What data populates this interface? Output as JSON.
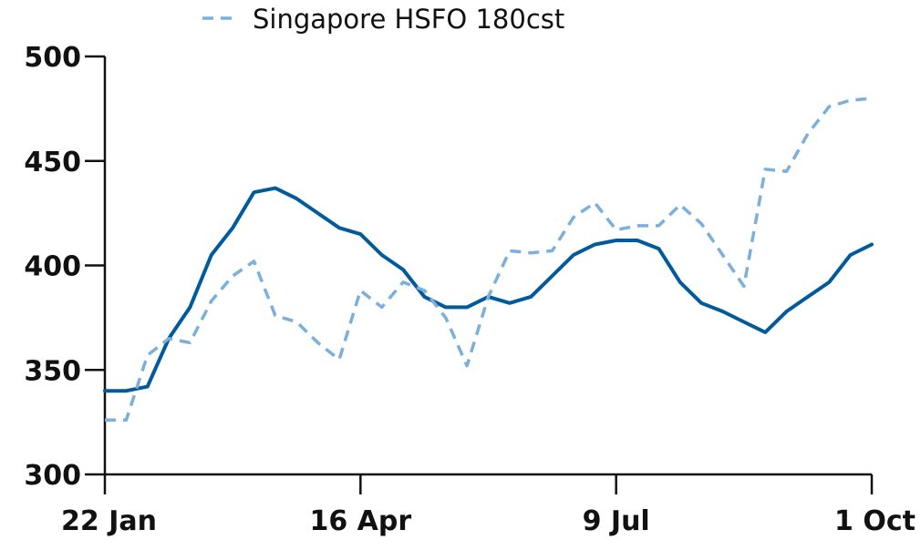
{
  "chart_data": {
    "type": "line",
    "title": "",
    "xlabel": "",
    "ylabel": "",
    "ylim": [
      300,
      500
    ],
    "yticks": [
      300,
      350,
      400,
      450,
      500
    ],
    "xticks": [
      "22 Jan",
      "16 Apr",
      "9 Jul",
      "1 Oct"
    ],
    "x": [
      "22 Jan",
      "29 Jan",
      "5 Feb",
      "12 Feb",
      "19 Feb",
      "26 Feb",
      "5 Mar",
      "12 Mar",
      "19 Mar",
      "26 Mar",
      "2 Apr",
      "9 Apr",
      "16 Apr",
      "23 Apr",
      "30 Apr",
      "7 May",
      "14 May",
      "21 May",
      "28 May",
      "4 Jun",
      "11 Jun",
      "18 Jun",
      "25 Jun",
      "2 Jul",
      "9 Jul",
      "16 Jul",
      "23 Jul",
      "30 Jul",
      "6 Aug",
      "13 Aug",
      "20 Aug",
      "27 Aug",
      "3 Sep",
      "10 Sep",
      "17 Sep",
      "24 Sep",
      "1 Oct"
    ],
    "grid": false,
    "legend_position": "top",
    "series": [
      {
        "name": "",
        "color": "#005a9c",
        "style": "solid",
        "values": [
          340,
          340,
          342,
          365,
          380,
          405,
          418,
          435,
          437,
          432,
          425,
          418,
          415,
          405,
          398,
          385,
          380,
          380,
          385,
          382,
          385,
          395,
          405,
          410,
          412,
          412,
          408,
          392,
          382,
          378,
          373,
          368,
          378,
          385,
          392,
          405,
          410
        ]
      },
      {
        "name": "Singapore HSFO 180cst",
        "color": "#7bafdc",
        "style": "dashed",
        "values": [
          326,
          326,
          357,
          365,
          363,
          383,
          395,
          402,
          376,
          373,
          363,
          355,
          388,
          380,
          392,
          388,
          375,
          352,
          385,
          407,
          406,
          407,
          423,
          430,
          417,
          419,
          419,
          429,
          420,
          405,
          390,
          446,
          445,
          463,
          476,
          479,
          480
        ]
      }
    ]
  }
}
